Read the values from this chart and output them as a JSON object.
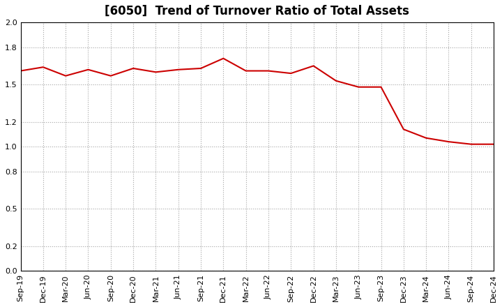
{
  "title": "[6050]  Trend of Turnover Ratio of Total Assets",
  "x_labels": [
    "Sep-19",
    "Dec-19",
    "Mar-20",
    "Jun-20",
    "Sep-20",
    "Dec-20",
    "Mar-21",
    "Jun-21",
    "Sep-21",
    "Dec-21",
    "Mar-22",
    "Jun-22",
    "Sep-22",
    "Dec-22",
    "Mar-23",
    "Jun-23",
    "Sep-23",
    "Dec-23",
    "Mar-24",
    "Jun-24",
    "Sep-24",
    "Dec-24"
  ],
  "y_values": [
    1.61,
    1.64,
    1.57,
    1.62,
    1.57,
    1.63,
    1.6,
    1.62,
    1.63,
    1.71,
    1.61,
    1.61,
    1.59,
    1.65,
    1.53,
    1.48,
    1.48,
    1.14,
    1.07,
    1.04,
    1.02,
    1.02
  ],
  "ylim": [
    0.0,
    2.0
  ],
  "yticks": [
    0.0,
    0.2,
    0.5,
    0.8,
    1.0,
    1.2,
    1.5,
    1.8,
    2.0
  ],
  "line_color": "#cc0000",
  "background_color": "#ffffff",
  "grid_color": "#999999",
  "title_fontsize": 12,
  "tick_fontsize": 8
}
